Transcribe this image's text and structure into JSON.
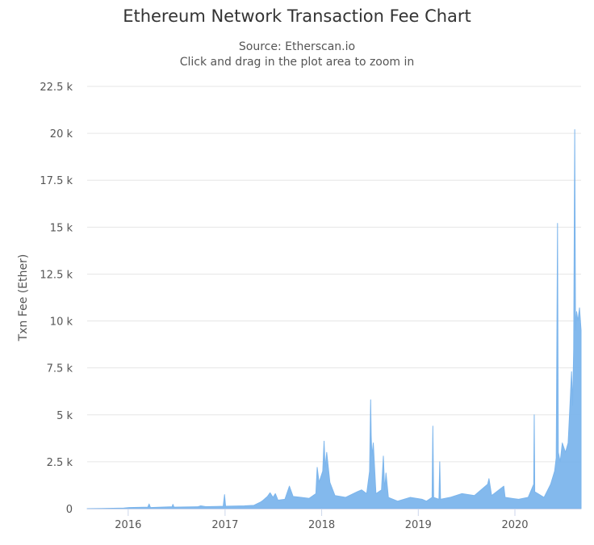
{
  "chart_data": {
    "type": "area",
    "title": "Ethereum Network Transaction Fee Chart",
    "subtitle_source": "Source: Etherscan.io",
    "subtitle_hint": "Click and drag in the plot area to zoom in",
    "ylabel": "Txn Fee (Ether)",
    "xlabel": "",
    "ylim": [
      0,
      22500
    ],
    "xlim": [
      "2015-07-30",
      "2020-09-07"
    ],
    "y_ticks": [
      {
        "value": 0,
        "label": "0"
      },
      {
        "value": 2500,
        "label": "2.5 k"
      },
      {
        "value": 5000,
        "label": "5 k"
      },
      {
        "value": 7500,
        "label": "7.5 k"
      },
      {
        "value": 10000,
        "label": "10 k"
      },
      {
        "value": 12500,
        "label": "12.5 k"
      },
      {
        "value": 15000,
        "label": "15 k"
      },
      {
        "value": 17500,
        "label": "17.5 k"
      },
      {
        "value": 20000,
        "label": "20 k"
      },
      {
        "value": 22500,
        "label": "22.5 k"
      }
    ],
    "x_ticks": [
      {
        "value": "2016-01-01",
        "label": "2016"
      },
      {
        "value": "2017-01-01",
        "label": "2017"
      },
      {
        "value": "2018-01-01",
        "label": "2018"
      },
      {
        "value": "2019-01-01",
        "label": "2019"
      },
      {
        "value": "2020-01-01",
        "label": "2020"
      }
    ],
    "grid": true,
    "legend": "none",
    "series_color": "#7cb5ec",
    "series": [
      {
        "points": [
          [
            "2015-07-30",
            0
          ],
          [
            "2015-12-15",
            30
          ],
          [
            "2016-01-05",
            60
          ],
          [
            "2016-03-15",
            80
          ],
          [
            "2016-03-20",
            250
          ],
          [
            "2016-03-25",
            60
          ],
          [
            "2016-06-15",
            100
          ],
          [
            "2016-06-18",
            230
          ],
          [
            "2016-06-22",
            80
          ],
          [
            "2016-09-20",
            100
          ],
          [
            "2016-10-01",
            150
          ],
          [
            "2016-10-20",
            110
          ],
          [
            "2016-12-01",
            120
          ],
          [
            "2016-12-25",
            130
          ],
          [
            "2016-12-30",
            750
          ],
          [
            "2017-01-03",
            130
          ],
          [
            "2017-03-15",
            150
          ],
          [
            "2017-04-20",
            180
          ],
          [
            "2017-05-15",
            350
          ],
          [
            "2017-05-25",
            450
          ],
          [
            "2017-06-10",
            650
          ],
          [
            "2017-06-20",
            850
          ],
          [
            "2017-07-01",
            600
          ],
          [
            "2017-07-10",
            800
          ],
          [
            "2017-07-20",
            450
          ],
          [
            "2017-08-15",
            500
          ],
          [
            "2017-09-01",
            1200
          ],
          [
            "2017-09-15",
            650
          ],
          [
            "2017-10-15",
            600
          ],
          [
            "2017-11-15",
            550
          ],
          [
            "2017-12-10",
            800
          ],
          [
            "2017-12-15",
            2200
          ],
          [
            "2017-12-22",
            1400
          ],
          [
            "2018-01-05",
            2000
          ],
          [
            "2018-01-10",
            3600
          ],
          [
            "2018-01-14",
            2200
          ],
          [
            "2018-01-20",
            3000
          ],
          [
            "2018-02-01",
            1400
          ],
          [
            "2018-02-20",
            700
          ],
          [
            "2018-04-01",
            600
          ],
          [
            "2018-05-15",
            900
          ],
          [
            "2018-06-01",
            1000
          ],
          [
            "2018-06-20",
            800
          ],
          [
            "2018-07-01",
            2000
          ],
          [
            "2018-07-05",
            5800
          ],
          [
            "2018-07-07",
            3900
          ],
          [
            "2018-07-10",
            2800
          ],
          [
            "2018-07-15",
            3500
          ],
          [
            "2018-07-25",
            800
          ],
          [
            "2018-08-15",
            1000
          ],
          [
            "2018-08-22",
            2800
          ],
          [
            "2018-08-27",
            1000
          ],
          [
            "2018-09-01",
            1900
          ],
          [
            "2018-09-10",
            600
          ],
          [
            "2018-10-15",
            400
          ],
          [
            "2018-12-01",
            600
          ],
          [
            "2019-01-15",
            500
          ],
          [
            "2019-02-01",
            400
          ],
          [
            "2019-02-22",
            600
          ],
          [
            "2019-02-25",
            4400
          ],
          [
            "2019-02-28",
            600
          ],
          [
            "2019-03-20",
            500
          ],
          [
            "2019-03-23",
            2500
          ],
          [
            "2019-03-26",
            500
          ],
          [
            "2019-05-01",
            600
          ],
          [
            "2019-06-15",
            800
          ],
          [
            "2019-08-01",
            700
          ],
          [
            "2019-09-20",
            1300
          ],
          [
            "2019-09-25",
            1600
          ],
          [
            "2019-10-05",
            700
          ],
          [
            "2019-11-20",
            1200
          ],
          [
            "2019-11-25",
            600
          ],
          [
            "2020-01-15",
            500
          ],
          [
            "2020-02-20",
            600
          ],
          [
            "2020-03-12",
            1300
          ],
          [
            "2020-03-14",
            5000
          ],
          [
            "2020-03-16",
            900
          ],
          [
            "2020-04-20",
            600
          ],
          [
            "2020-05-15",
            1300
          ],
          [
            "2020-05-30",
            2000
          ],
          [
            "2020-06-05",
            2700
          ],
          [
            "2020-06-10",
            15200
          ],
          [
            "2020-06-13",
            3000
          ],
          [
            "2020-06-20",
            2500
          ],
          [
            "2020-06-28",
            3500
          ],
          [
            "2020-07-10",
            3000
          ],
          [
            "2020-07-20",
            3500
          ],
          [
            "2020-07-28",
            5800
          ],
          [
            "2020-08-02",
            7300
          ],
          [
            "2020-08-06",
            5500
          ],
          [
            "2020-08-10",
            8500
          ],
          [
            "2020-08-14",
            20200
          ],
          [
            "2020-08-17",
            9500
          ],
          [
            "2020-08-21",
            10500
          ],
          [
            "2020-08-26",
            10000
          ],
          [
            "2020-09-01",
            10700
          ],
          [
            "2020-09-07",
            9500
          ]
        ]
      }
    ]
  }
}
